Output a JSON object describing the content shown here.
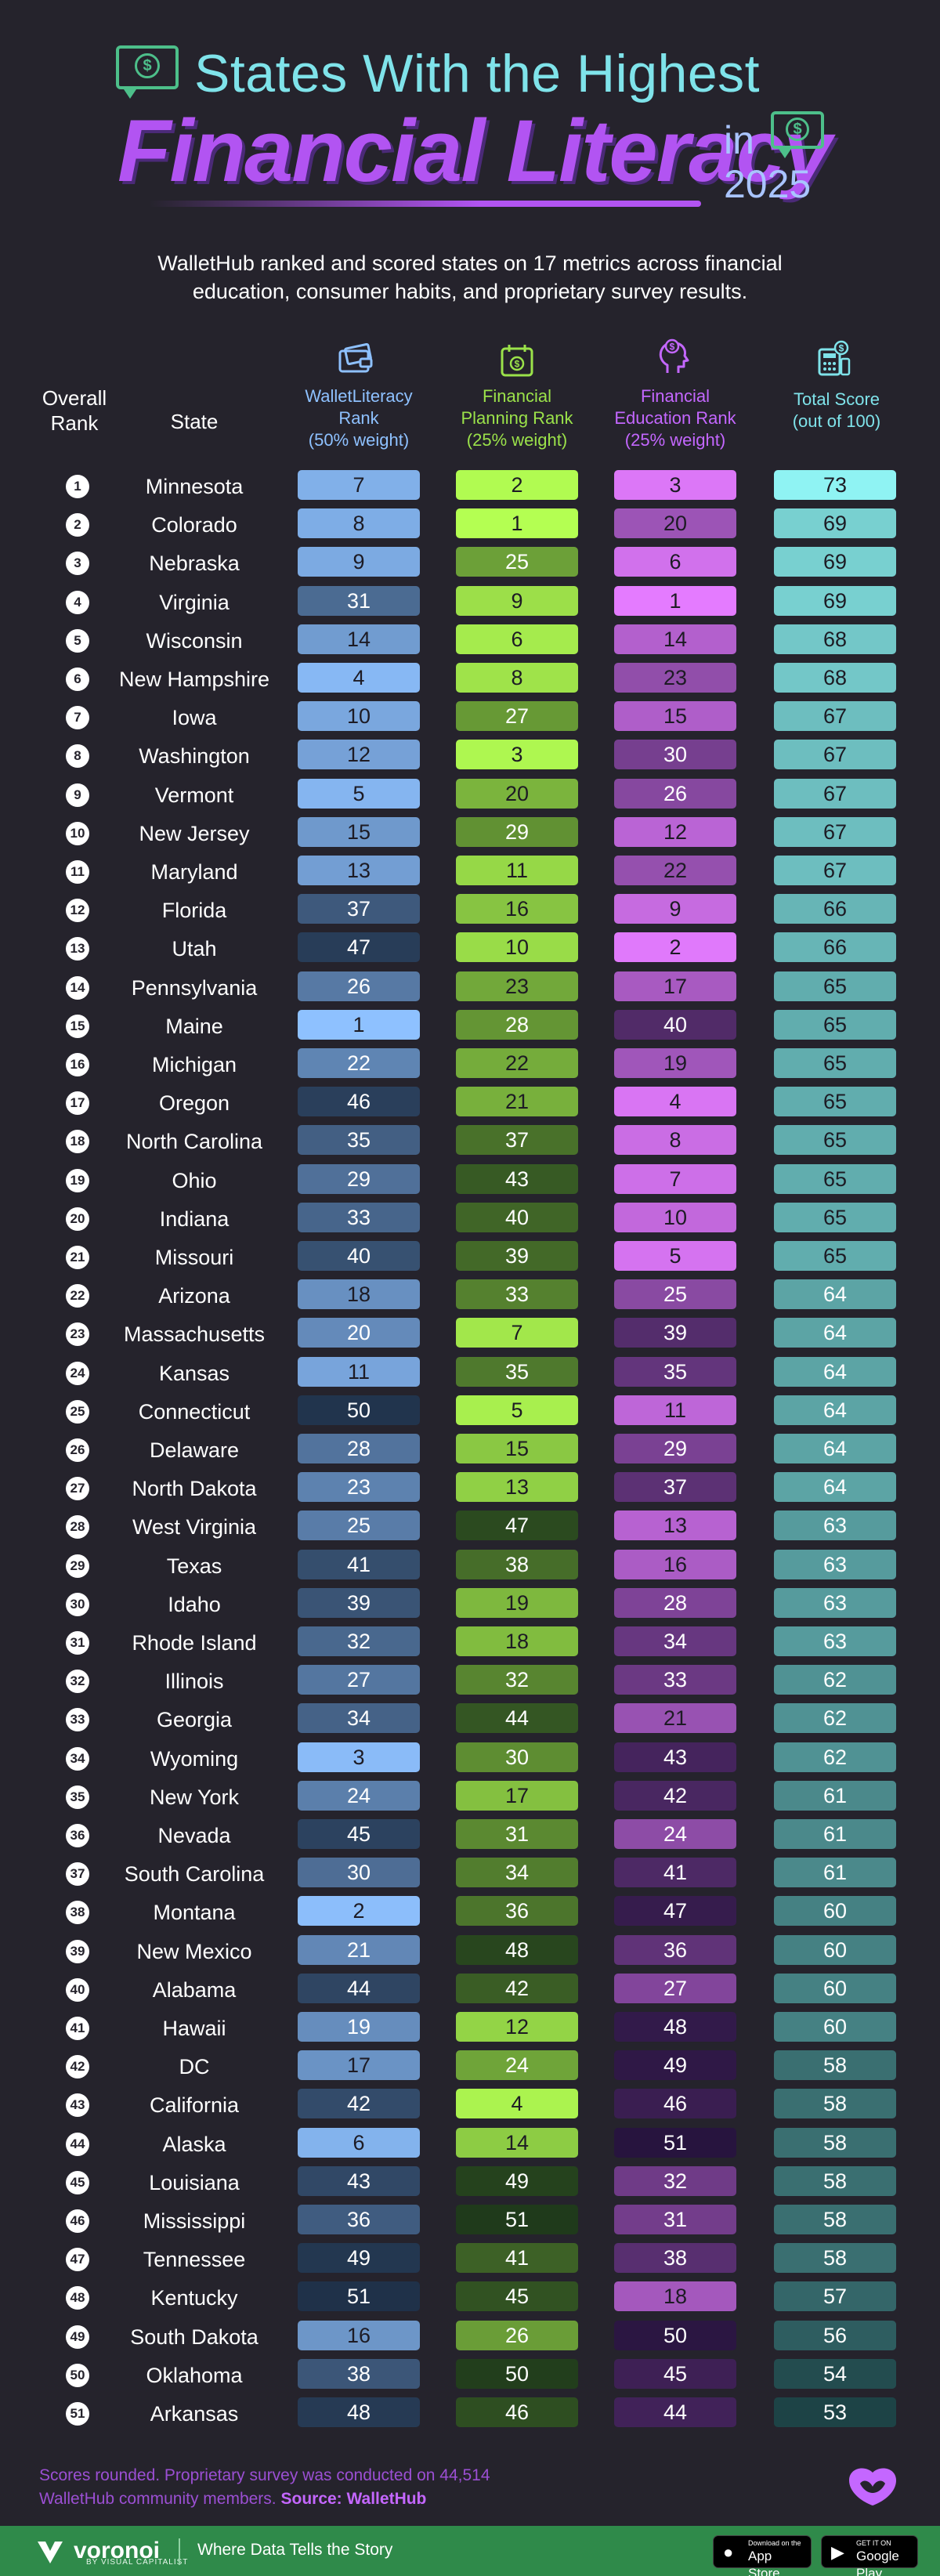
{
  "header": {
    "title_line1": "States With the Highest",
    "title_line2": "Financial Literacy",
    "title_in": "in",
    "title_year": "2025",
    "subtitle_line1": "WalletHub ranked and scored states on 17 metrics across financial",
    "subtitle_line2": "education, consumer habits, and proprietary survey results."
  },
  "columns": {
    "rank": [
      "Overall",
      "Rank"
    ],
    "state": "State",
    "wallet": [
      "WalletLiteracy",
      "Rank",
      "(50% weight)"
    ],
    "planning": [
      "Financial",
      "Planning Rank",
      "(25% weight)"
    ],
    "education": [
      "Financial",
      "Education Rank",
      "(25% weight)"
    ],
    "score": [
      "Total Score",
      "(out of 100)"
    ]
  },
  "colors": {
    "background": "#25232c",
    "wallet_scale": [
      "#8ec1ff",
      "#1f3149"
    ],
    "planning_scale": [
      "#b4ff52",
      "#1f3a1b"
    ],
    "education_scale": [
      "#e47bff",
      "#27143e"
    ],
    "score_scale": [
      "#8ff3f3",
      "#1d4346"
    ],
    "title_cyan": "#7fe3ea",
    "title_purple": "#b254f2",
    "footer_green": "#2f8a4a"
  },
  "chart_data": {
    "type": "table",
    "columns": [
      "Overall Rank",
      "State",
      "WalletLiteracy Rank (50% weight)",
      "Financial Planning Rank (25% weight)",
      "Financial Education Rank (25% weight)",
      "Total Score (out of 100)"
    ],
    "rows": [
      [
        1,
        "Minnesota",
        7,
        2,
        3,
        73
      ],
      [
        2,
        "Colorado",
        8,
        1,
        20,
        69
      ],
      [
        3,
        "Nebraska",
        9,
        25,
        6,
        69
      ],
      [
        4,
        "Virginia",
        31,
        9,
        1,
        69
      ],
      [
        5,
        "Wisconsin",
        14,
        6,
        14,
        68
      ],
      [
        6,
        "New Hampshire",
        4,
        8,
        23,
        68
      ],
      [
        7,
        "Iowa",
        10,
        27,
        15,
        67
      ],
      [
        8,
        "Washington",
        12,
        3,
        30,
        67
      ],
      [
        9,
        "Vermont",
        5,
        20,
        26,
        67
      ],
      [
        10,
        "New Jersey",
        15,
        29,
        12,
        67
      ],
      [
        11,
        "Maryland",
        13,
        11,
        22,
        67
      ],
      [
        12,
        "Florida",
        37,
        16,
        9,
        66
      ],
      [
        13,
        "Utah",
        47,
        10,
        2,
        66
      ],
      [
        14,
        "Pennsylvania",
        26,
        23,
        17,
        65
      ],
      [
        15,
        "Maine",
        1,
        28,
        40,
        65
      ],
      [
        16,
        "Michigan",
        22,
        22,
        19,
        65
      ],
      [
        17,
        "Oregon",
        46,
        21,
        4,
        65
      ],
      [
        18,
        "North Carolina",
        35,
        37,
        8,
        65
      ],
      [
        19,
        "Ohio",
        29,
        43,
        7,
        65
      ],
      [
        20,
        "Indiana",
        33,
        40,
        10,
        65
      ],
      [
        21,
        "Missouri",
        40,
        39,
        5,
        65
      ],
      [
        22,
        "Arizona",
        18,
        33,
        25,
        64
      ],
      [
        23,
        "Massachusetts",
        20,
        7,
        39,
        64
      ],
      [
        24,
        "Kansas",
        11,
        35,
        35,
        64
      ],
      [
        25,
        "Connecticut",
        50,
        5,
        11,
        64
      ],
      [
        26,
        "Delaware",
        28,
        15,
        29,
        64
      ],
      [
        27,
        "North Dakota",
        23,
        13,
        37,
        64
      ],
      [
        28,
        "West Virginia",
        25,
        47,
        13,
        63
      ],
      [
        29,
        "Texas",
        41,
        38,
        16,
        63
      ],
      [
        30,
        "Idaho",
        39,
        19,
        28,
        63
      ],
      [
        31,
        "Rhode Island",
        32,
        18,
        34,
        63
      ],
      [
        32,
        "Illinois",
        27,
        32,
        33,
        62
      ],
      [
        33,
        "Georgia",
        34,
        44,
        21,
        62
      ],
      [
        34,
        "Wyoming",
        3,
        30,
        43,
        62
      ],
      [
        35,
        "New York",
        24,
        17,
        42,
        61
      ],
      [
        36,
        "Nevada",
        45,
        31,
        24,
        61
      ],
      [
        37,
        "South Carolina",
        30,
        34,
        41,
        61
      ],
      [
        38,
        "Montana",
        2,
        36,
        47,
        60
      ],
      [
        39,
        "New Mexico",
        21,
        48,
        36,
        60
      ],
      [
        40,
        "Alabama",
        44,
        42,
        27,
        60
      ],
      [
        41,
        "Hawaii",
        19,
        12,
        48,
        60
      ],
      [
        42,
        "DC",
        17,
        24,
        49,
        58
      ],
      [
        43,
        "California",
        42,
        4,
        46,
        58
      ],
      [
        44,
        "Alaska",
        6,
        14,
        51,
        58
      ],
      [
        45,
        "Louisiana",
        43,
        49,
        32,
        58
      ],
      [
        46,
        "Mississippi",
        36,
        51,
        31,
        58
      ],
      [
        47,
        "Tennessee",
        49,
        41,
        38,
        58
      ],
      [
        48,
        "Kentucky",
        51,
        45,
        18,
        57
      ],
      [
        49,
        "South Dakota",
        16,
        26,
        50,
        56
      ],
      [
        50,
        "Oklahoma",
        38,
        50,
        45,
        54
      ],
      [
        51,
        "Arkansas",
        48,
        46,
        44,
        53
      ]
    ]
  },
  "footer": {
    "note_line1": "Scores rounded. Proprietary survey was conducted on 44,514",
    "note_line2_prefix": "WalletHub community members.",
    "note_source": "Source: WalletHub",
    "brand": "voronoi",
    "brand_sub": "BY VISUAL CAPITALIST",
    "tagline": "Where Data Tells the Story",
    "appstore_small": "Download on the",
    "appstore_big": "App Store",
    "googleplay_small": "GET IT ON",
    "googleplay_big": "Google Play"
  }
}
